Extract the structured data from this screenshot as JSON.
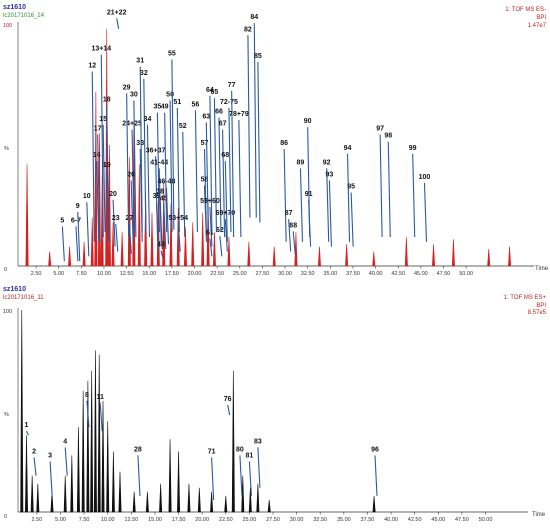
{
  "chart_data": [
    {
      "type": "line",
      "sample_label": "sz1610",
      "file_label": "lc20171016_24",
      "mode_label": "1: TOF MS ES-",
      "trace_label": "BPI",
      "intensity_label": "1.47e7",
      "ylabel": "%",
      "xlabel": "Time",
      "y_ticks": [
        "100",
        "0"
      ],
      "xlim": [
        0.5,
        57.5
      ],
      "ylim": [
        0,
        100
      ],
      "x_tick_labels": [
        "2.50",
        "5.00",
        "7.50",
        "10.00",
        "12.50",
        "15.00",
        "17.50",
        "20.00",
        "22.50",
        "25.00",
        "27.50",
        "30.00",
        "32.50",
        "35.00",
        "37.50",
        "40.00",
        "42.50",
        "45.00",
        "47.50",
        "50.00"
      ],
      "peaks": [
        {
          "t": 1.5,
          "h": 42
        },
        {
          "t": 4.0,
          "h": 6
        },
        {
          "t": 6.2,
          "h": 8
        },
        {
          "t": 7.8,
          "h": 10
        },
        {
          "t": 8.7,
          "h": 20
        },
        {
          "t": 9.1,
          "h": 72
        },
        {
          "t": 9.5,
          "h": 55
        },
        {
          "t": 9.8,
          "h": 38
        },
        {
          "t": 10.3,
          "h": 98
        },
        {
          "t": 10.6,
          "h": 50
        },
        {
          "t": 11.0,
          "h": 18
        },
        {
          "t": 12.0,
          "h": 14
        },
        {
          "t": 12.8,
          "h": 45
        },
        {
          "t": 13.3,
          "h": 60
        },
        {
          "t": 13.9,
          "h": 42
        },
        {
          "t": 14.6,
          "h": 30
        },
        {
          "t": 15.3,
          "h": 22
        },
        {
          "t": 16.0,
          "h": 28
        },
        {
          "t": 16.6,
          "h": 35
        },
        {
          "t": 17.4,
          "h": 26
        },
        {
          "t": 18.2,
          "h": 24
        },
        {
          "t": 19.0,
          "h": 16
        },
        {
          "t": 19.8,
          "h": 18
        },
        {
          "t": 20.9,
          "h": 22
        },
        {
          "t": 21.5,
          "h": 28
        },
        {
          "t": 22.2,
          "h": 14
        },
        {
          "t": 23.8,
          "h": 12
        },
        {
          "t": 26.0,
          "h": 10
        },
        {
          "t": 28.8,
          "h": 8
        },
        {
          "t": 31.2,
          "h": 14
        },
        {
          "t": 33.8,
          "h": 8
        },
        {
          "t": 36.8,
          "h": 9
        },
        {
          "t": 39.8,
          "h": 6
        },
        {
          "t": 43.4,
          "h": 12
        },
        {
          "t": 46.4,
          "h": 9
        },
        {
          "t": 48.6,
          "h": 11
        },
        {
          "t": 52.5,
          "h": 7
        },
        {
          "t": 54.8,
          "h": 8
        }
      ],
      "annotations": [
        {
          "label": "5",
          "t": 5.4,
          "lab_y": 18,
          "tip_y": 2
        },
        {
          "label": "6-7",
          "t": 6.9,
          "lab_y": 18,
          "tip_y": 2
        },
        {
          "label": "9",
          "t": 7.1,
          "lab_y": 24,
          "tip_y": 2
        },
        {
          "label": "10",
          "t": 8.1,
          "lab_y": 28,
          "tip_y": 4
        },
        {
          "label": "12",
          "t": 8.7,
          "lab_y": 82,
          "tip_y": 10
        },
        {
          "label": "13+14",
          "t": 9.7,
          "lab_y": 89,
          "tip_y": 12
        },
        {
          "label": "15",
          "t": 9.9,
          "lab_y": 60,
          "tip_y": 14
        },
        {
          "label": "16",
          "t": 9.2,
          "lab_y": 45,
          "tip_y": 10
        },
        {
          "label": "17",
          "t": 9.3,
          "lab_y": 56,
          "tip_y": 10
        },
        {
          "label": "18",
          "t": 10.3,
          "lab_y": 68,
          "tip_y": 14
        },
        {
          "label": "19",
          "t": 10.3,
          "lab_y": 41,
          "tip_y": 10
        },
        {
          "label": "20",
          "t": 11.0,
          "lab_y": 29,
          "tip_y": 8
        },
        {
          "label": "21+22",
          "t": 11.4,
          "lab_y": 104,
          "tip_y": 98
        },
        {
          "label": "23",
          "t": 11.3,
          "lab_y": 19,
          "tip_y": 6
        },
        {
          "label": "24+25",
          "t": 13.1,
          "lab_y": 58,
          "tip_y": 14
        },
        {
          "label": "26",
          "t": 13.0,
          "lab_y": 37,
          "tip_y": 10
        },
        {
          "label": "27",
          "t": 12.8,
          "lab_y": 19,
          "tip_y": 5
        },
        {
          "label": "29",
          "t": 12.5,
          "lab_y": 73,
          "tip_y": 12
        },
        {
          "label": "30",
          "t": 13.3,
          "lab_y": 70,
          "tip_y": 12
        },
        {
          "label": "31",
          "t": 14.0,
          "lab_y": 84,
          "tip_y": 14
        },
        {
          "label": "32",
          "t": 14.4,
          "lab_y": 79,
          "tip_y": 14
        },
        {
          "label": "33",
          "t": 14.0,
          "lab_y": 50,
          "tip_y": 10
        },
        {
          "label": "34",
          "t": 14.8,
          "lab_y": 60,
          "tip_y": 12
        },
        {
          "label": "35",
          "t": 15.9,
          "lab_y": 65,
          "tip_y": 14
        },
        {
          "label": "36+37",
          "t": 15.7,
          "lab_y": 47,
          "tip_y": 10
        },
        {
          "label": "38",
          "t": 16.2,
          "lab_y": 30,
          "tip_y": 7
        },
        {
          "label": "39",
          "t": 15.8,
          "lab_y": 28,
          "tip_y": 6
        },
        {
          "label": "40",
          "t": 16.3,
          "lab_y": 8,
          "tip_y": 3
        },
        {
          "label": "41-44",
          "t": 16.1,
          "lab_y": 42,
          "tip_y": 10
        },
        {
          "label": "45",
          "t": 16.6,
          "lab_y": 27,
          "tip_y": 7
        },
        {
          "label": "46-48",
          "t": 16.9,
          "lab_y": 34,
          "tip_y": 9
        },
        {
          "label": "49",
          "t": 16.7,
          "lab_y": 65,
          "tip_y": 14
        },
        {
          "label": "50",
          "t": 17.3,
          "lab_y": 70,
          "tip_y": 14
        },
        {
          "label": "51",
          "t": 18.1,
          "lab_y": 67,
          "tip_y": 14
        },
        {
          "label": "52",
          "t": 18.7,
          "lab_y": 57,
          "tip_y": 12
        },
        {
          "label": "53+54",
          "t": 18.2,
          "lab_y": 19,
          "tip_y": 6
        },
        {
          "label": "55",
          "t": 17.5,
          "lab_y": 87,
          "tip_y": 15
        },
        {
          "label": "56",
          "t": 20.1,
          "lab_y": 66,
          "tip_y": 14
        },
        {
          "label": "57",
          "t": 21.1,
          "lab_y": 50,
          "tip_y": 12
        },
        {
          "label": "58",
          "t": 21.1,
          "lab_y": 35,
          "tip_y": 10
        },
        {
          "label": "59+60",
          "t": 21.7,
          "lab_y": 26,
          "tip_y": 8
        },
        {
          "label": "61",
          "t": 21.7,
          "lab_y": 13,
          "tip_y": 4
        },
        {
          "label": "62",
          "t": 22.8,
          "lab_y": 14,
          "tip_y": 4
        },
        {
          "label": "63",
          "t": 21.3,
          "lab_y": 61,
          "tip_y": 14
        },
        {
          "label": "64",
          "t": 21.7,
          "lab_y": 72,
          "tip_y": 14
        },
        {
          "label": "65",
          "t": 22.2,
          "lab_y": 71,
          "tip_y": 14
        },
        {
          "label": "66",
          "t": 22.7,
          "lab_y": 63,
          "tip_y": 14
        },
        {
          "label": "67",
          "t": 23.1,
          "lab_y": 58,
          "tip_y": 12
        },
        {
          "label": "68",
          "t": 23.4,
          "lab_y": 45,
          "tip_y": 10
        },
        {
          "label": "69+70",
          "t": 23.4,
          "lab_y": 21,
          "tip_y": 6
        },
        {
          "label": "72-75",
          "t": 23.8,
          "lab_y": 67,
          "tip_y": 14
        },
        {
          "label": "77",
          "t": 24.1,
          "lab_y": 74,
          "tip_y": 12
        },
        {
          "label": "78+79",
          "t": 24.9,
          "lab_y": 62,
          "tip_y": 12
        },
        {
          "label": "82",
          "t": 25.9,
          "lab_y": 97,
          "tip_y": 20
        },
        {
          "label": "84",
          "t": 26.6,
          "lab_y": 102,
          "tip_y": 20
        },
        {
          "label": "85",
          "t": 27.0,
          "lab_y": 86,
          "tip_y": 18
        },
        {
          "label": "86",
          "t": 29.9,
          "lab_y": 50,
          "tip_y": 10
        },
        {
          "label": "87",
          "t": 30.4,
          "lab_y": 21,
          "tip_y": 6
        },
        {
          "label": "88",
          "t": 30.9,
          "lab_y": 16,
          "tip_y": 5
        },
        {
          "label": "89",
          "t": 31.7,
          "lab_y": 42,
          "tip_y": 10
        },
        {
          "label": "90",
          "t": 32.5,
          "lab_y": 59,
          "tip_y": 12
        },
        {
          "label": "91",
          "t": 32.6,
          "lab_y": 29,
          "tip_y": 8
        },
        {
          "label": "92",
          "t": 34.6,
          "lab_y": 42,
          "tip_y": 10
        },
        {
          "label": "93",
          "t": 34.9,
          "lab_y": 37,
          "tip_y": 8
        },
        {
          "label": "94",
          "t": 36.9,
          "lab_y": 48,
          "tip_y": 10
        },
        {
          "label": "95",
          "t": 37.3,
          "lab_y": 32,
          "tip_y": 8
        },
        {
          "label": "97",
          "t": 40.5,
          "lab_y": 56,
          "tip_y": 12
        },
        {
          "label": "98",
          "t": 41.4,
          "lab_y": 53,
          "tip_y": 12
        },
        {
          "label": "99",
          "t": 44.1,
          "lab_y": 48,
          "tip_y": 12
        },
        {
          "label": "100",
          "t": 45.4,
          "lab_y": 36,
          "tip_y": 10
        }
      ]
    },
    {
      "type": "line",
      "sample_label": "sz1610",
      "file_label": "lc20171016_11",
      "mode_label": "1: TOF MS ES+",
      "trace_label": "BPI",
      "intensity_label": "8.57e5",
      "ylabel": "%",
      "xlabel": "Time",
      "y_ticks": [
        "100",
        "0"
      ],
      "xlim": [
        0.5,
        54.5
      ],
      "ylim": [
        0,
        100
      ],
      "x_tick_labels": [
        "2.50",
        "5.00",
        "7.50",
        "10.00",
        "12.50",
        "15.00",
        "17.50",
        "20.00",
        "22.50",
        "25.00",
        "27.50",
        "30.00",
        "32.50",
        "35.00",
        "37.50",
        "40.00",
        "42.50",
        "45.00",
        "47.50",
        "50.00"
      ],
      "peaks": [
        {
          "t": 0.9,
          "h": 100
        },
        {
          "t": 1.4,
          "h": 38
        },
        {
          "t": 2.0,
          "h": 18
        },
        {
          "t": 2.6,
          "h": 14
        },
        {
          "t": 4.1,
          "h": 10
        },
        {
          "t": 5.5,
          "h": 18
        },
        {
          "t": 6.2,
          "h": 28
        },
        {
          "t": 6.9,
          "h": 42
        },
        {
          "t": 7.4,
          "h": 60
        },
        {
          "t": 7.9,
          "h": 65
        },
        {
          "t": 8.3,
          "h": 70
        },
        {
          "t": 8.7,
          "h": 80
        },
        {
          "t": 9.1,
          "h": 78
        },
        {
          "t": 9.5,
          "h": 55
        },
        {
          "t": 10.0,
          "h": 45
        },
        {
          "t": 10.6,
          "h": 30
        },
        {
          "t": 11.3,
          "h": 20
        },
        {
          "t": 12.8,
          "h": 10
        },
        {
          "t": 14.2,
          "h": 10
        },
        {
          "t": 15.6,
          "h": 14
        },
        {
          "t": 16.6,
          "h": 36
        },
        {
          "t": 17.5,
          "h": 30
        },
        {
          "t": 18.6,
          "h": 14
        },
        {
          "t": 19.7,
          "h": 12
        },
        {
          "t": 21.0,
          "h": 10
        },
        {
          "t": 22.5,
          "h": 8
        },
        {
          "t": 23.3,
          "h": 70
        },
        {
          "t": 24.3,
          "h": 18
        },
        {
          "t": 25.1,
          "h": 12
        },
        {
          "t": 25.9,
          "h": 14
        },
        {
          "t": 27.1,
          "h": 6
        },
        {
          "t": 38.2,
          "h": 8
        }
      ],
      "annotations": [
        {
          "label": "1",
          "t": 1.4,
          "lab_y": 42,
          "tip_y": 38
        },
        {
          "label": "2",
          "t": 2.2,
          "lab_y": 29,
          "tip_y": 18
        },
        {
          "label": "3",
          "t": 3.9,
          "lab_y": 27,
          "tip_y": 8
        },
        {
          "label": "4",
          "t": 5.5,
          "lab_y": 34,
          "tip_y": 18
        },
        {
          "label": "8",
          "t": 7.8,
          "lab_y": 57,
          "tip_y": 42
        },
        {
          "label": "11",
          "t": 9.2,
          "lab_y": 56,
          "tip_y": 40
        },
        {
          "label": "28",
          "t": 13.2,
          "lab_y": 30,
          "tip_y": 8
        },
        {
          "label": "71",
          "t": 21.0,
          "lab_y": 29,
          "tip_y": 6
        },
        {
          "label": "76",
          "t": 22.7,
          "lab_y": 55,
          "tip_y": 48
        },
        {
          "label": "80",
          "t": 24.0,
          "lab_y": 30,
          "tip_y": 8
        },
        {
          "label": "81",
          "t": 25.0,
          "lab_y": 27,
          "tip_y": 8
        },
        {
          "label": "83",
          "t": 25.9,
          "lab_y": 34,
          "tip_y": 12
        },
        {
          "label": "96",
          "t": 38.3,
          "lab_y": 30,
          "tip_y": 8
        }
      ]
    }
  ]
}
